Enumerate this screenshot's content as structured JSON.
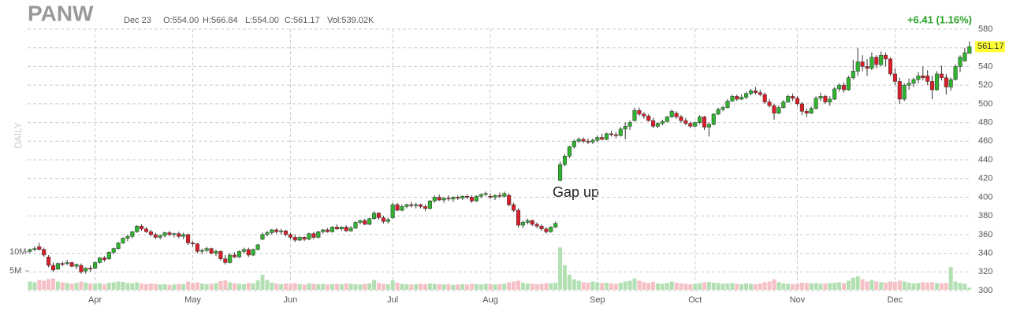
{
  "header": {
    "symbol": "PANW",
    "date": "Dec 23",
    "open": "O:554.00",
    "high": "H:566.84",
    "low": "L:554.00",
    "close": "C:561.17",
    "volume": "Vol:539.02K",
    "change": "+6.41 (1.16%)",
    "period": "DAILY"
  },
  "chart_data": {
    "type": "candlestick",
    "up_color": "#2fb32f",
    "down_color": "#d91e2a",
    "up_volume_color": "#b3e0b3",
    "down_volume_color": "#f5c0c6",
    "grid": true,
    "annotation": "Gap up",
    "price_tag": 561.17,
    "ylim": [
      300,
      580
    ],
    "yticks": [
      300,
      320,
      340,
      360,
      380,
      400,
      420,
      440,
      460,
      480,
      500,
      520,
      540,
      560,
      580
    ],
    "volume_ylim": [
      0,
      69
    ],
    "volume_ticks": [
      {
        "value": 5,
        "label": "5M"
      },
      {
        "value": 10,
        "label": "10M"
      }
    ],
    "categories": [
      null,
      null,
      null,
      null,
      null,
      null,
      null,
      null,
      null,
      null,
      null,
      null,
      null,
      null,
      "Apr",
      null,
      null,
      null,
      null,
      null,
      null,
      null,
      null,
      null,
      null,
      null,
      null,
      null,
      null,
      null,
      null,
      null,
      null,
      null,
      null,
      "May",
      null,
      null,
      null,
      null,
      null,
      null,
      null,
      null,
      null,
      null,
      null,
      null,
      null,
      null,
      null,
      null,
      null,
      null,
      null,
      null,
      "Jun",
      null,
      null,
      null,
      null,
      null,
      null,
      null,
      null,
      null,
      null,
      null,
      null,
      null,
      null,
      null,
      null,
      null,
      null,
      null,
      null,
      null,
      "Jul",
      null,
      null,
      null,
      null,
      null,
      null,
      null,
      null,
      null,
      null,
      null,
      null,
      null,
      null,
      null,
      null,
      null,
      null,
      null,
      null,
      "Aug",
      null,
      null,
      null,
      null,
      null,
      null,
      null,
      null,
      null,
      null,
      null,
      null,
      null,
      null,
      null,
      null,
      null,
      null,
      null,
      null,
      null,
      null,
      "Sep",
      null,
      null,
      null,
      null,
      null,
      null,
      null,
      null,
      null,
      null,
      null,
      null,
      null,
      null,
      null,
      null,
      null,
      null,
      null,
      null,
      "Oct",
      null,
      null,
      null,
      null,
      null,
      null,
      null,
      null,
      null,
      null,
      null,
      null,
      null,
      null,
      null,
      null,
      null,
      null,
      null,
      null,
      null,
      "Nov",
      null,
      null,
      null,
      null,
      null,
      null,
      null,
      null,
      null,
      null,
      null,
      null,
      null,
      null,
      null,
      null,
      null,
      null,
      null,
      null,
      "Dec",
      null,
      null,
      null,
      null,
      null,
      null,
      null,
      null,
      null,
      null,
      null,
      null,
      null,
      null,
      null,
      null
    ],
    "candles": [
      [
        342,
        345,
        340,
        344
      ],
      [
        344,
        347,
        342,
        345
      ],
      [
        347,
        351,
        343,
        344
      ],
      [
        344,
        346,
        336,
        338
      ],
      [
        336,
        338,
        325,
        327
      ],
      [
        327,
        330,
        320,
        322
      ],
      [
        323,
        330,
        322,
        329
      ],
      [
        329,
        331,
        326,
        328
      ],
      [
        330,
        333,
        327,
        330
      ],
      [
        330,
        331,
        325,
        326
      ],
      [
        326,
        329,
        323,
        328
      ],
      [
        327,
        329,
        318,
        320
      ],
      [
        321,
        325,
        318,
        324
      ],
      [
        324,
        327,
        320,
        323
      ],
      [
        324,
        331,
        323,
        330
      ],
      [
        330,
        336,
        329,
        335
      ],
      [
        335,
        337,
        331,
        333
      ],
      [
        334,
        342,
        333,
        341
      ],
      [
        341,
        346,
        339,
        345
      ],
      [
        345,
        352,
        344,
        351
      ],
      [
        351,
        357,
        350,
        356
      ],
      [
        356,
        360,
        353,
        358
      ],
      [
        358,
        364,
        356,
        363
      ],
      [
        363,
        370,
        362,
        369
      ],
      [
        369,
        371,
        364,
        366
      ],
      [
        366,
        368,
        362,
        363
      ],
      [
        363,
        365,
        358,
        360
      ],
      [
        360,
        362,
        355,
        357
      ],
      [
        357,
        360,
        355,
        359
      ],
      [
        359,
        363,
        357,
        362
      ],
      [
        362,
        364,
        358,
        360
      ],
      [
        360,
        362,
        357,
        361
      ],
      [
        361,
        363,
        356,
        358
      ],
      [
        358,
        362,
        355,
        360
      ],
      [
        360,
        361,
        349,
        351
      ],
      [
        351,
        353,
        347,
        350
      ],
      [
        350,
        351,
        340,
        342
      ],
      [
        342,
        345,
        339,
        343
      ],
      [
        343,
        347,
        341,
        345
      ],
      [
        345,
        346,
        339,
        340
      ],
      [
        340,
        344,
        337,
        342
      ],
      [
        342,
        343,
        332,
        334
      ],
      [
        334,
        338,
        328,
        330
      ],
      [
        330,
        340,
        329,
        338
      ],
      [
        338,
        341,
        335,
        336
      ],
      [
        336,
        343,
        335,
        342
      ],
      [
        342,
        346,
        340,
        344
      ],
      [
        344,
        346,
        336,
        338
      ],
      [
        338,
        345,
        337,
        344
      ],
      [
        344,
        350,
        343,
        349
      ],
      [
        355,
        362,
        354,
        360
      ],
      [
        360,
        364,
        358,
        362
      ],
      [
        362,
        366,
        360,
        365
      ],
      [
        365,
        367,
        361,
        363
      ],
      [
        363,
        366,
        360,
        364
      ],
      [
        364,
        365,
        358,
        360
      ],
      [
        360,
        362,
        355,
        357
      ],
      [
        357,
        360,
        352,
        354
      ],
      [
        354,
        358,
        353,
        357
      ],
      [
        357,
        358,
        353,
        355
      ],
      [
        355,
        362,
        354,
        361
      ],
      [
        361,
        363,
        355,
        357
      ],
      [
        357,
        364,
        356,
        363
      ],
      [
        363,
        366,
        361,
        365
      ],
      [
        365,
        367,
        362,
        363
      ],
      [
        363,
        369,
        362,
        368
      ],
      [
        368,
        371,
        365,
        366
      ],
      [
        366,
        369,
        364,
        368
      ],
      [
        368,
        370,
        363,
        364
      ],
      [
        364,
        369,
        363,
        367
      ],
      [
        367,
        374,
        366,
        373
      ],
      [
        373,
        376,
        371,
        375
      ],
      [
        375,
        377,
        370,
        371
      ],
      [
        371,
        378,
        370,
        377
      ],
      [
        377,
        385,
        376,
        383
      ],
      [
        383,
        384,
        376,
        378
      ],
      [
        378,
        380,
        372,
        374
      ],
      [
        374,
        378,
        372,
        376
      ],
      [
        378,
        394,
        377,
        392
      ],
      [
        392,
        394,
        385,
        386
      ],
      [
        386,
        392,
        385,
        390
      ],
      [
        390,
        393,
        388,
        392
      ],
      [
        392,
        395,
        389,
        391
      ],
      [
        391,
        394,
        388,
        392
      ],
      [
        392,
        393,
        388,
        390
      ],
      [
        390,
        392,
        385,
        388
      ],
      [
        388,
        397,
        387,
        396
      ],
      [
        396,
        402,
        394,
        400
      ],
      [
        400,
        403,
        396,
        397
      ],
      [
        397,
        400,
        394,
        399
      ],
      [
        399,
        402,
        396,
        398
      ],
      [
        398,
        401,
        395,
        400
      ],
      [
        400,
        402,
        397,
        399
      ],
      [
        399,
        402,
        397,
        401
      ],
      [
        401,
        403,
        398,
        400
      ],
      [
        400,
        402,
        394,
        396
      ],
      [
        396,
        402,
        395,
        401
      ],
      [
        401,
        404,
        399,
        403
      ],
      [
        403,
        406,
        401,
        404
      ],
      [
        401,
        404,
        398,
        400
      ],
      [
        400,
        403,
        397,
        402
      ],
      [
        402,
        405,
        399,
        401
      ],
      [
        401,
        406,
        400,
        404
      ],
      [
        402,
        404,
        390,
        392
      ],
      [
        392,
        394,
        384,
        386
      ],
      [
        386,
        388,
        368,
        370
      ],
      [
        370,
        375,
        367,
        373
      ],
      [
        373,
        377,
        371,
        375
      ],
      [
        375,
        376,
        369,
        371
      ],
      [
        371,
        373,
        367,
        369
      ],
      [
        369,
        371,
        364,
        366
      ],
      [
        366,
        368,
        361,
        363
      ],
      [
        363,
        369,
        362,
        368
      ],
      [
        368,
        374,
        367,
        372
      ],
      [
        418,
        438,
        417,
        435
      ],
      [
        435,
        446,
        433,
        444
      ],
      [
        444,
        455,
        442,
        454
      ],
      [
        454,
        462,
        452,
        460
      ],
      [
        460,
        464,
        458,
        462
      ],
      [
        462,
        464,
        458,
        460
      ],
      [
        460,
        463,
        457,
        459
      ],
      [
        459,
        463,
        457,
        461
      ],
      [
        461,
        466,
        459,
        464
      ],
      [
        464,
        468,
        461,
        462
      ],
      [
        462,
        469,
        461,
        468
      ],
      [
        468,
        471,
        465,
        467
      ],
      [
        467,
        470,
        463,
        466
      ],
      [
        466,
        475,
        465,
        473
      ],
      [
        473,
        480,
        462,
        476
      ],
      [
        476,
        482,
        472,
        480
      ],
      [
        482,
        496,
        481,
        493
      ],
      [
        493,
        496,
        487,
        489
      ],
      [
        489,
        491,
        484,
        487
      ],
      [
        487,
        489,
        481,
        482
      ],
      [
        482,
        485,
        474,
        476
      ],
      [
        476,
        480,
        474,
        479
      ],
      [
        479,
        483,
        477,
        481
      ],
      [
        481,
        487,
        480,
        486
      ],
      [
        486,
        494,
        485,
        492
      ],
      [
        490,
        492,
        484,
        486
      ],
      [
        486,
        488,
        480,
        482
      ],
      [
        482,
        485,
        477,
        479
      ],
      [
        479,
        481,
        474,
        476
      ],
      [
        476,
        481,
        475,
        480
      ],
      [
        480,
        488,
        478,
        486
      ],
      [
        486,
        487,
        472,
        475
      ],
      [
        475,
        480,
        465,
        478
      ],
      [
        478,
        490,
        477,
        489
      ],
      [
        489,
        496,
        488,
        494
      ],
      [
        494,
        498,
        492,
        496
      ],
      [
        496,
        505,
        495,
        503
      ],
      [
        503,
        510,
        502,
        508
      ],
      [
        508,
        510,
        503,
        505
      ],
      [
        505,
        510,
        504,
        507
      ],
      [
        507,
        513,
        505,
        511
      ],
      [
        511,
        516,
        509,
        514
      ],
      [
        514,
        518,
        510,
        512
      ],
      [
        512,
        515,
        508,
        510
      ],
      [
        510,
        512,
        500,
        502
      ],
      [
        502,
        505,
        496,
        498
      ],
      [
        498,
        500,
        483,
        490
      ],
      [
        490,
        498,
        489,
        496
      ],
      [
        496,
        504,
        495,
        502
      ],
      [
        502,
        510,
        501,
        508
      ],
      [
        508,
        511,
        503,
        506
      ],
      [
        506,
        508,
        498,
        500
      ],
      [
        500,
        502,
        488,
        492
      ],
      [
        492,
        495,
        486,
        490
      ],
      [
        490,
        497,
        489,
        495
      ],
      [
        495,
        508,
        494,
        506
      ],
      [
        506,
        512,
        503,
        508
      ],
      [
        508,
        510,
        500,
        502
      ],
      [
        502,
        508,
        498,
        505
      ],
      [
        505,
        518,
        504,
        516
      ],
      [
        516,
        522,
        513,
        520
      ],
      [
        520,
        523,
        512,
        515
      ],
      [
        515,
        530,
        514,
        528
      ],
      [
        528,
        547,
        526,
        535
      ],
      [
        535,
        560,
        530,
        545
      ],
      [
        545,
        552,
        535,
        540
      ],
      [
        540,
        548,
        530,
        538
      ],
      [
        538,
        555,
        536,
        550
      ],
      [
        550,
        552,
        538,
        542
      ],
      [
        542,
        556,
        540,
        552
      ],
      [
        552,
        555,
        540,
        548
      ],
      [
        548,
        550,
        530,
        532
      ],
      [
        532,
        538,
        520,
        524
      ],
      [
        524,
        528,
        500,
        505
      ],
      [
        505,
        522,
        503,
        520
      ],
      [
        520,
        527,
        515,
        522
      ],
      [
        522,
        528,
        518,
        526
      ],
      [
        526,
        534,
        522,
        530
      ],
      [
        530,
        540,
        525,
        528
      ],
      [
        530,
        536,
        520,
        524
      ],
      [
        524,
        530,
        505,
        515
      ],
      [
        515,
        535,
        514,
        532
      ],
      [
        532,
        541,
        525,
        528
      ],
      [
        528,
        532,
        510,
        518
      ],
      [
        518,
        528,
        514,
        526
      ],
      [
        526,
        542,
        525,
        540
      ],
      [
        540,
        552,
        534,
        550
      ],
      [
        546,
        560,
        545,
        554.76
      ],
      [
        554,
        566.84,
        554,
        561.17
      ]
    ],
    "volume": [
      2.2,
      2.0,
      2.6,
      2.4,
      2.8,
      3.0,
      2.2,
      2.0,
      1.8,
      1.6,
      1.8,
      2.2,
      1.9,
      1.7,
      1.6,
      1.8,
      1.5,
      1.9,
      2.0,
      2.2,
      2.1,
      1.8,
      1.7,
      2.0,
      1.6,
      1.5,
      1.7,
      1.6,
      1.4,
      1.5,
      1.3,
      1.4,
      1.6,
      1.5,
      2.2,
      1.8,
      2.0,
      1.7,
      1.5,
      1.6,
      1.8,
      2.3,
      2.5,
      2.0,
      1.7,
      1.6,
      1.5,
      1.8,
      1.7,
      2.5,
      4.0,
      2.6,
      1.9,
      1.6,
      1.5,
      1.7,
      1.6,
      1.8,
      1.5,
      1.4,
      1.7,
      1.6,
      1.5,
      1.6,
      1.4,
      1.5,
      1.6,
      1.5,
      1.7,
      1.6,
      1.5,
      1.4,
      1.6,
      1.7,
      2.6,
      1.8,
      1.6,
      1.5,
      2.5,
      1.9,
      1.6,
      1.5,
      1.4,
      1.5,
      1.6,
      1.5,
      1.7,
      1.6,
      1.5,
      1.4,
      1.5,
      1.3,
      1.4,
      1.5,
      1.4,
      1.6,
      1.5,
      1.4,
      1.6,
      1.5,
      1.4,
      1.5,
      1.6,
      2.0,
      2.2,
      2.4,
      1.9,
      1.7,
      1.6,
      1.5,
      1.6,
      1.8,
      1.7,
      1.9,
      11.2,
      6.5,
      4.0,
      2.8,
      2.4,
      2.0,
      1.9,
      2.2,
      2.0,
      1.8,
      1.9,
      1.7,
      1.6,
      1.9,
      2.2,
      2.4,
      3.0,
      2.4,
      2.0,
      1.8,
      2.1,
      1.7,
      1.6,
      1.8,
      2.2,
      1.9,
      1.7,
      1.6,
      1.5,
      1.6,
      1.8,
      2.0,
      2.1,
      1.9,
      1.8,
      1.6,
      1.7,
      1.8,
      1.6,
      1.5,
      1.7,
      1.6,
      1.5,
      1.7,
      2.0,
      2.2,
      2.8,
      2.0,
      1.7,
      1.6,
      1.5,
      1.6,
      1.9,
      1.8,
      1.7,
      1.8,
      1.6,
      1.7,
      1.8,
      1.9,
      2.0,
      1.8,
      2.4,
      3.2,
      3.6,
      2.8,
      2.2,
      2.6,
      2.2,
      2.0,
      1.9,
      2.2,
      2.1,
      2.4,
      2.2,
      1.9,
      1.7,
      1.8,
      2.0,
      1.9,
      2.0,
      1.8,
      1.7,
      1.8,
      6.0,
      2.2,
      1.8,
      1.6,
      0.54
    ]
  }
}
